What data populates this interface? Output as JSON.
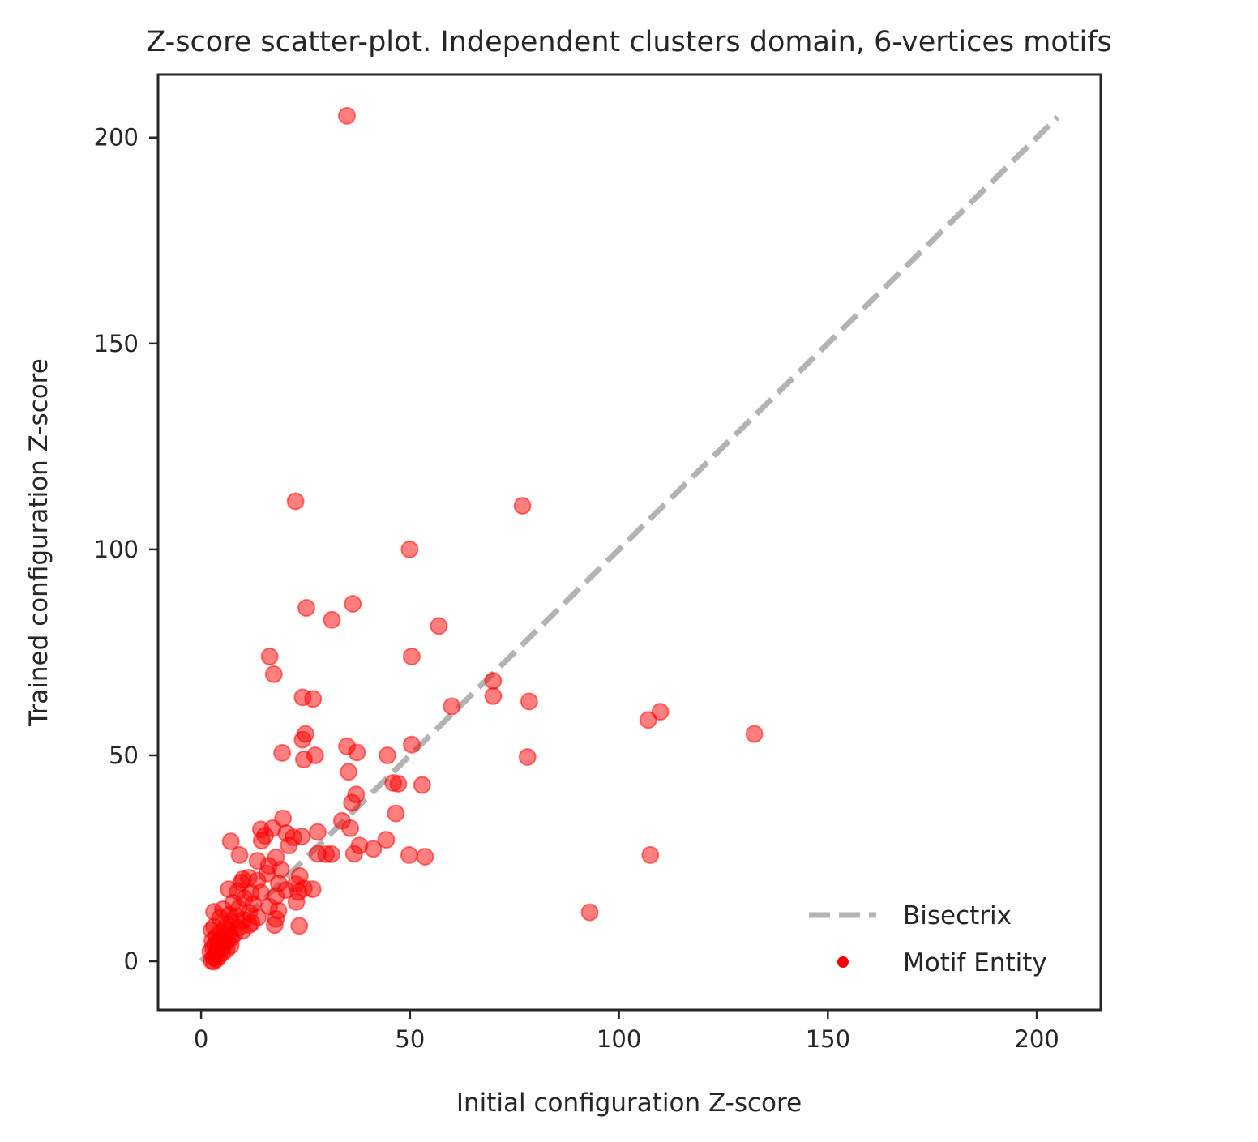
{
  "chart_data": {
    "type": "scatter",
    "title": "Z-score scatter-plot. Independent clusters domain, 6-vertices motifs",
    "xlabel": "Initial configuration Z-score",
    "ylabel": "Trained configuration Z-score",
    "xlim": [
      -10.3,
      215.3
    ],
    "ylim": [
      -11.8,
      215.3
    ],
    "xticks": [
      0,
      50,
      100,
      150,
      200
    ],
    "yticks": [
      0,
      50,
      100,
      150,
      200
    ],
    "xtick_labels": [
      "0",
      "50",
      "100",
      "150",
      "200"
    ],
    "ytick_labels": [
      "0",
      "50",
      "100",
      "150",
      "200"
    ],
    "grid": false,
    "legend_position": "bottom-right",
    "legend": [
      {
        "label": "Bisectrix",
        "kind": "dashed-line",
        "color": "#808080"
      },
      {
        "label": "Motif Entity",
        "kind": "marker",
        "color": "#ff0000"
      }
    ],
    "reference_line": {
      "name": "Bisectrix",
      "x": [
        0,
        205
      ],
      "y": [
        0,
        205
      ],
      "color": "#808080",
      "style": "dashed",
      "alpha": 0.6
    },
    "series": [
      {
        "name": "Motif Entity",
        "color": "#ff0000",
        "alpha": 0.5,
        "points": [
          [
            34.9,
            205.3
          ],
          [
            22.6,
            111.7
          ],
          [
            76.9,
            110.6
          ],
          [
            49.9,
            100.0
          ],
          [
            36.3,
            86.8
          ],
          [
            25.2,
            85.8
          ],
          [
            31.3,
            82.9
          ],
          [
            56.9,
            81.4
          ],
          [
            16.4,
            74.0
          ],
          [
            50.4,
            74.0
          ],
          [
            17.4,
            69.7
          ],
          [
            69.9,
            68.1
          ],
          [
            24.3,
            64.1
          ],
          [
            26.8,
            63.7
          ],
          [
            69.9,
            64.4
          ],
          [
            78.5,
            63.1
          ],
          [
            60.0,
            61.9
          ],
          [
            109.9,
            60.6
          ],
          [
            107.0,
            58.6
          ],
          [
            132.4,
            55.2
          ],
          [
            25.0,
            55.2
          ],
          [
            24.3,
            53.8
          ],
          [
            34.9,
            52.2
          ],
          [
            50.4,
            52.6
          ],
          [
            37.3,
            50.7
          ],
          [
            19.4,
            50.6
          ],
          [
            27.3,
            50.0
          ],
          [
            24.6,
            49.0
          ],
          [
            44.6,
            50.0
          ],
          [
            78.1,
            49.6
          ],
          [
            35.3,
            46.0
          ],
          [
            46.0,
            43.3
          ],
          [
            47.2,
            43.1
          ],
          [
            52.9,
            42.8
          ],
          [
            37.1,
            40.5
          ],
          [
            36.1,
            38.5
          ],
          [
            46.6,
            35.9
          ],
          [
            19.6,
            34.7
          ],
          [
            33.7,
            34.1
          ],
          [
            35.7,
            32.3
          ],
          [
            14.3,
            32.0
          ],
          [
            17.1,
            32.3
          ],
          [
            27.9,
            31.4
          ],
          [
            20.4,
            31.1
          ],
          [
            15.3,
            30.5
          ],
          [
            24.1,
            30.3
          ],
          [
            22.1,
            30.1
          ],
          [
            14.5,
            29.3
          ],
          [
            7.1,
            29.1
          ],
          [
            44.3,
            29.5
          ],
          [
            21.0,
            28.1
          ],
          [
            37.9,
            28.1
          ],
          [
            41.2,
            27.3
          ],
          [
            27.9,
            26.1
          ],
          [
            29.9,
            26.0
          ],
          [
            31.2,
            26.0
          ],
          [
            36.6,
            26.1
          ],
          [
            49.8,
            25.8
          ],
          [
            53.6,
            25.4
          ],
          [
            107.5,
            25.8
          ],
          [
            9.2,
            25.8
          ],
          [
            17.9,
            25.2
          ],
          [
            13.5,
            24.4
          ],
          [
            16.2,
            23.2
          ],
          [
            19.1,
            22.3
          ],
          [
            15.8,
            21.3
          ],
          [
            23.6,
            20.7
          ],
          [
            11.4,
            20.3
          ],
          [
            10.0,
            19.9
          ],
          [
            13.5,
            19.6
          ],
          [
            9.6,
            19.1
          ],
          [
            22.7,
            18.7
          ],
          [
            18.6,
            18.9
          ],
          [
            26.7,
            17.5
          ],
          [
            24.6,
            17.7
          ],
          [
            6.6,
            17.5
          ],
          [
            8.8,
            17.0
          ],
          [
            20.3,
            17.3
          ],
          [
            14.3,
            16.7
          ],
          [
            11.9,
            16.5
          ],
          [
            23.3,
            16.8
          ],
          [
            17.9,
            15.8
          ],
          [
            10.4,
            15.3
          ],
          [
            22.8,
            14.4
          ],
          [
            12.5,
            13.9
          ],
          [
            7.7,
            14.2
          ],
          [
            16.3,
            13.3
          ],
          [
            9.0,
            12.8
          ],
          [
            5.2,
            12.6
          ],
          [
            18.5,
            12.3
          ],
          [
            3.1,
            12.0
          ],
          [
            11.5,
            11.8
          ],
          [
            93.0,
            11.9
          ],
          [
            6.8,
            11.3
          ],
          [
            8.4,
            10.9
          ],
          [
            13.6,
            10.7
          ],
          [
            4.5,
            10.5
          ],
          [
            17.9,
            10.3
          ],
          [
            10.2,
            10.0
          ],
          [
            7.3,
            9.6
          ],
          [
            12.1,
            9.3
          ],
          [
            6.2,
            9.0
          ],
          [
            11.5,
            8.8
          ],
          [
            17.6,
            8.8
          ],
          [
            23.5,
            8.6
          ],
          [
            3.1,
            8.4
          ],
          [
            8.9,
            8.1
          ],
          [
            5.7,
            7.9
          ],
          [
            9.9,
            7.4
          ],
          [
            2.5,
            7.6
          ],
          [
            6.8,
            7.2
          ],
          [
            4.4,
            6.9
          ],
          [
            8.0,
            6.6
          ],
          [
            5.8,
            6.2
          ],
          [
            3.6,
            5.9
          ],
          [
            7.2,
            5.6
          ],
          [
            4.9,
            5.4
          ],
          [
            2.7,
            5.1
          ],
          [
            6.3,
            4.9
          ],
          [
            4.1,
            4.5
          ],
          [
            5.5,
            4.2
          ],
          [
            3.3,
            3.9
          ],
          [
            7.1,
            3.8
          ],
          [
            2.8,
            3.4
          ],
          [
            4.6,
            3.1
          ],
          [
            6.1,
            2.8
          ],
          [
            3.9,
            2.5
          ],
          [
            2.2,
            2.4
          ],
          [
            5.1,
            2.0
          ],
          [
            3.5,
            1.6
          ],
          [
            4.3,
            1.2
          ],
          [
            2.9,
            0.9
          ],
          [
            3.7,
            0.5
          ],
          [
            2.5,
            0.1
          ],
          [
            3.0,
            -0.1
          ]
        ]
      }
    ]
  }
}
